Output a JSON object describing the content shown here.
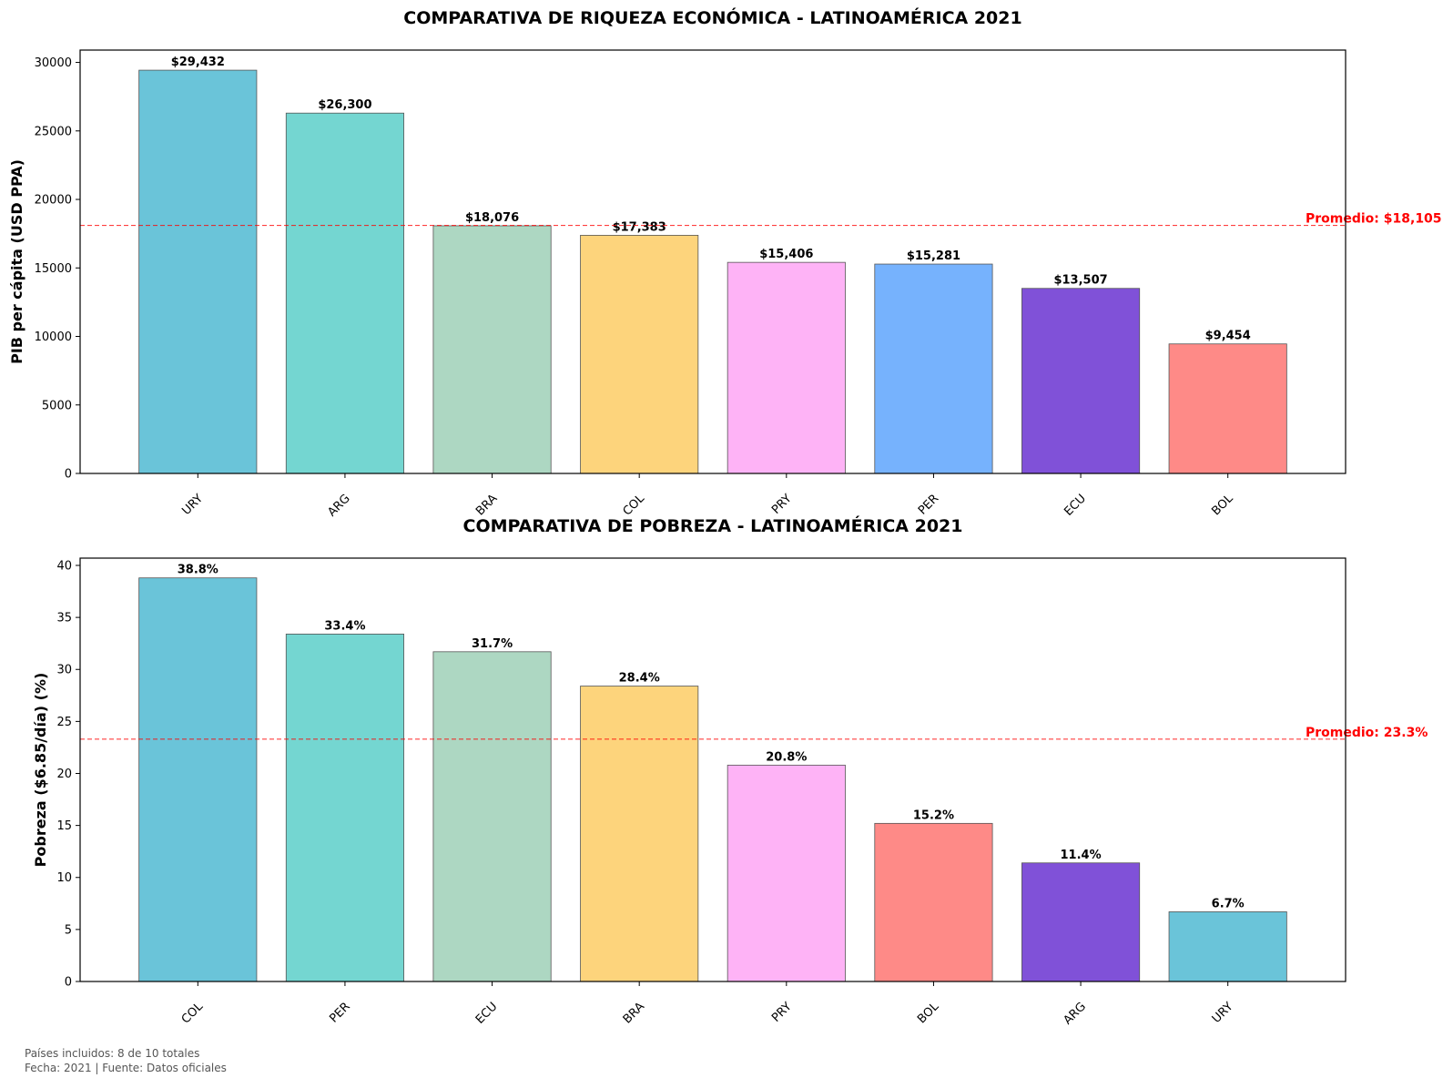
{
  "footer": {
    "line1": "Países incluidos: 8 de 10 totales",
    "line2": "Fecha: 2021 | Fuente: Datos oficiales"
  },
  "chart_data": [
    {
      "type": "bar",
      "title": "COMPARATIVA DE RIQUEZA ECONÓMICA - LATINOAMÉRICA 2021",
      "ylabel": "PIB per cápita (USD PPA)",
      "xlabel": "",
      "categories": [
        "URY",
        "ARG",
        "BRA",
        "COL",
        "PRY",
        "PER",
        "ECU",
        "BOL"
      ],
      "values": [
        29432,
        26300,
        18076,
        17383,
        15406,
        15281,
        13507,
        9454
      ],
      "value_labels": [
        "$29,432",
        "$26,300",
        "$18,076",
        "$17,383",
        "$15,406",
        "$15,281",
        "$13,507",
        "$9,454"
      ],
      "colors": [
        "#6AC4D9",
        "#74D6D1",
        "#ADD7C2",
        "#FDD47C",
        "#FEB3F6",
        "#76B2FD",
        "#8051D8",
        "#FE8A87"
      ],
      "ylim": [
        0,
        30900
      ],
      "yticks": [
        0,
        5000,
        10000,
        15000,
        20000,
        25000,
        30000
      ],
      "average": {
        "value": 18105,
        "label": "Promedio: $18,105",
        "color": "#FF0000"
      },
      "grid": false
    },
    {
      "type": "bar",
      "title": "COMPARATIVA DE POBREZA - LATINOAMÉRICA 2021",
      "ylabel": "Pobreza ($6.85/día) (%)",
      "xlabel": "",
      "categories": [
        "COL",
        "PER",
        "ECU",
        "BRA",
        "PRY",
        "BOL",
        "ARG",
        "URY"
      ],
      "values": [
        38.8,
        33.4,
        31.7,
        28.4,
        20.8,
        15.2,
        11.4,
        6.7
      ],
      "value_labels": [
        "38.8%",
        "33.4%",
        "31.7%",
        "28.4%",
        "20.8%",
        "15.2%",
        "11.4%",
        "6.7%"
      ],
      "colors": [
        "#6AC4D9",
        "#74D6D1",
        "#ADD7C2",
        "#FDD47C",
        "#FEB3F6",
        "#FE8A87",
        "#8051D8",
        "#6AC4D9"
      ],
      "ylim": [
        0,
        40.7
      ],
      "yticks": [
        0,
        5,
        10,
        15,
        20,
        25,
        30,
        35,
        40
      ],
      "average": {
        "value": 23.3,
        "label": "Promedio: 23.3%",
        "color": "#FF0000"
      },
      "grid": false
    }
  ]
}
